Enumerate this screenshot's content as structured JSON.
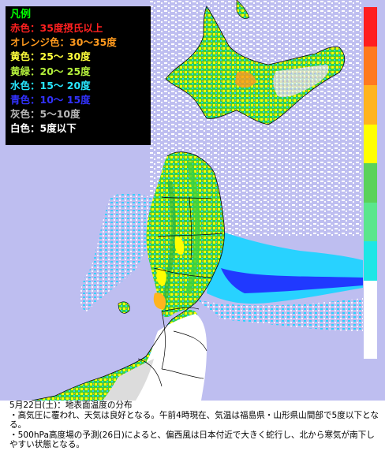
{
  "legend": {
    "title": "凡例",
    "entries": [
      {
        "text": "赤色：35度摂氏以上",
        "color": "#ff2020"
      },
      {
        "text": "オレンジ色：30～35度",
        "color": "#ff9a1e"
      },
      {
        "text": "黄色：25～ 30度",
        "color": "#ffff3c"
      },
      {
        "text": "黄緑：20～ 25度",
        "color": "#b4f03c"
      },
      {
        "text": "水色：15～ 20度",
        "color": "#28e6ff"
      },
      {
        "text": "青色：10～ 15度",
        "color": "#3232ff"
      },
      {
        "text": "灰色：5～10度",
        "color": "#b9b9b9"
      },
      {
        "text": "白色：5度以下",
        "color": "#ffffff"
      }
    ]
  },
  "colorbar": [
    "#ff1e1e",
    "#ff7a1e",
    "#ffb41e",
    "#ffff00",
    "#5ad25a",
    "#5ae68c",
    "#1ee6e6",
    "#ffffff",
    "#ffffff",
    "#bebef0"
  ],
  "colors": {
    "land_white": "#ffffff",
    "land_gray": "#dcdcdc",
    "land_green": "#3cd23c",
    "land_yellow": "#ffff00",
    "sea_cyan": "#28d2ff",
    "sea_lavender": "#bebef0",
    "sea_blue": "#1e1eff",
    "border": "#000000"
  },
  "caption": {
    "line1": "5月22日(土)：地表面温度の分布",
    "line2": "・高気圧に覆われ、天気は良好となる。午前4時現在、気温は福島県・山形県山間部で5度以下となる。",
    "line3": "・500hPa高度場の予測(26日)によると、偏西風は日本付近で大きく蛇行し、北から寒気が南下しやすい状態となる。"
  }
}
